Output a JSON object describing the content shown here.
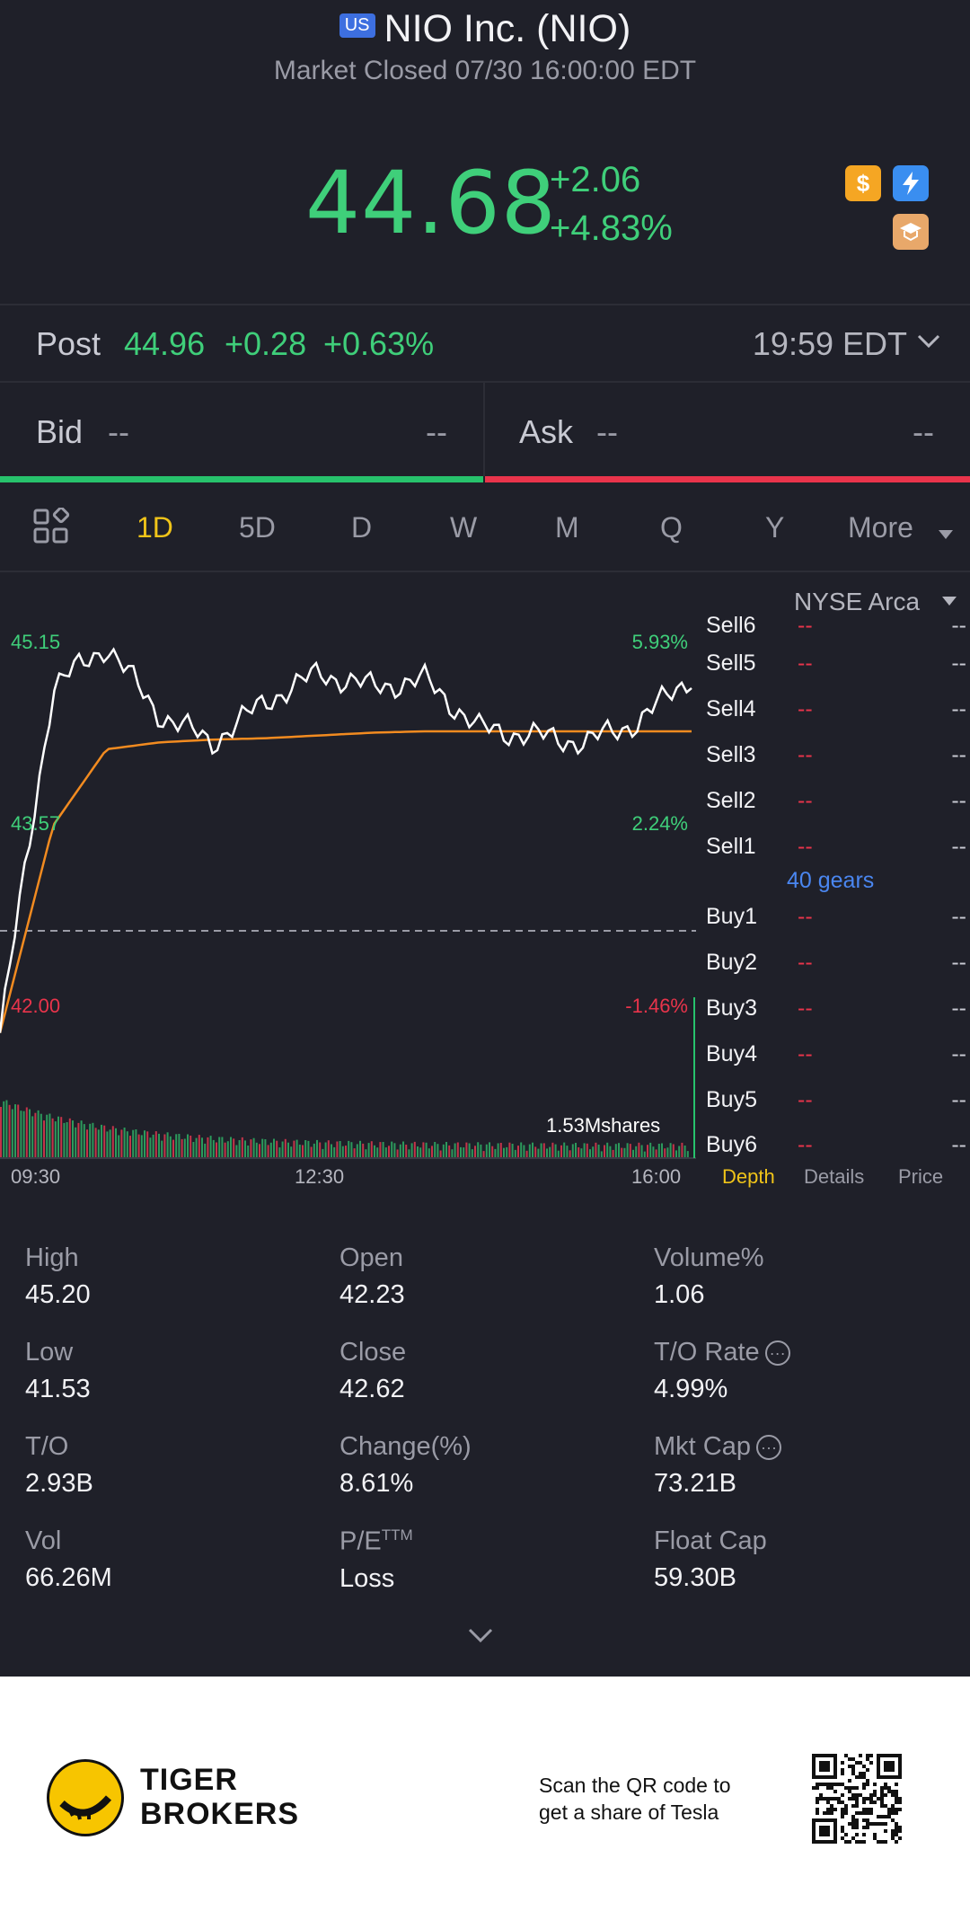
{
  "header": {
    "market_badge": "US",
    "title": "NIO Inc. (NIO)",
    "status": "Market Closed 07/30 16:00:00 EDT",
    "price": "44.68",
    "change": "+2.06",
    "change_pct": "+4.83%"
  },
  "post": {
    "label": "Post",
    "price": "44.96",
    "change": "+0.28",
    "change_pct": "+0.63%",
    "time": "19:59 EDT"
  },
  "bid_ask": {
    "bid_label": "Bid",
    "bid_price": "--",
    "bid_size": "--",
    "ask_label": "Ask",
    "ask_price": "--",
    "ask_size": "--"
  },
  "tabs": [
    "1D",
    "5D",
    "D",
    "W",
    "M",
    "Q",
    "Y",
    "More"
  ],
  "active_tab": "1D",
  "chart": {
    "y_high": "45.15",
    "y_mid": "43.57",
    "y_low": "42.00",
    "pct_high": "5.93%",
    "pct_mid": "2.24%",
    "pct_low": "-1.46%",
    "volume_label": "1.53Mshares",
    "x_labels": [
      "09:30",
      "12:30",
      "16:00"
    ]
  },
  "chart_data": {
    "type": "line",
    "x": [
      "09:30",
      "10:00",
      "10:30",
      "11:00",
      "11:30",
      "12:00",
      "12:30",
      "13:00",
      "13:30",
      "14:00",
      "14:30",
      "15:00",
      "15:30",
      "16:00"
    ],
    "series": [
      {
        "values": [
          42.1,
          44.6,
          44.9,
          44.4,
          44.2,
          44.5,
          44.7,
          44.6,
          44.65,
          44.3,
          44.25,
          44.2,
          44.35,
          44.68
        ]
      },
      {
        "values": [
          42.1,
          43.6,
          44.15,
          44.2,
          44.22,
          44.23,
          44.25,
          44.27,
          44.28,
          44.28,
          44.28,
          44.28,
          44.28,
          44.28
        ]
      }
    ],
    "ylim": [
      42.0,
      45.15
    ]
  },
  "depth": {
    "exchange": "NYSE Arca",
    "sells": [
      {
        "label": "Sell6",
        "price": "--",
        "size": "--"
      },
      {
        "label": "Sell5",
        "price": "--",
        "size": "--"
      },
      {
        "label": "Sell4",
        "price": "--",
        "size": "--"
      },
      {
        "label": "Sell3",
        "price": "--",
        "size": "--"
      },
      {
        "label": "Sell2",
        "price": "--",
        "size": "--"
      },
      {
        "label": "Sell1",
        "price": "--",
        "size": "--"
      }
    ],
    "gears": "40 gears",
    "buys": [
      {
        "label": "Buy1",
        "price": "--",
        "size": "--"
      },
      {
        "label": "Buy2",
        "price": "--",
        "size": "--"
      },
      {
        "label": "Buy3",
        "price": "--",
        "size": "--"
      },
      {
        "label": "Buy4",
        "price": "--",
        "size": "--"
      },
      {
        "label": "Buy5",
        "price": "--",
        "size": "--"
      },
      {
        "label": "Buy6",
        "price": "--",
        "size": "--"
      }
    ],
    "panel_tabs": [
      "Depth",
      "Details",
      "Price"
    ]
  },
  "stats": [
    {
      "label": "High",
      "value": "45.20"
    },
    {
      "label": "Open",
      "value": "42.23"
    },
    {
      "label": "Volume%",
      "value": "1.06"
    },
    {
      "label": "Low",
      "value": "41.53"
    },
    {
      "label": "Close",
      "value": "42.62"
    },
    {
      "label": "T/O Rate",
      "value": "4.99%"
    },
    {
      "label": "T/O",
      "value": "2.93B"
    },
    {
      "label": "Change(%)",
      "value": "8.61%"
    },
    {
      "label": "Mkt Cap",
      "value": "73.21B"
    },
    {
      "label": "Vol",
      "value": "66.26M"
    },
    {
      "label": "P/E",
      "label_sup": "TTM",
      "value": "Loss"
    },
    {
      "label": "Float Cap",
      "value": "59.30B"
    }
  ],
  "footer": {
    "brand_line1": "TIGER",
    "brand_line2": "BROKERS",
    "qr_text_line1": "Scan the QR code to",
    "qr_text_line2": "get a share of Tesla"
  },
  "colors": {
    "up": "#3fcf7a",
    "down": "#e9344b",
    "accent": "#f0c419",
    "link": "#4a86f0",
    "background": "#1f2029"
  }
}
